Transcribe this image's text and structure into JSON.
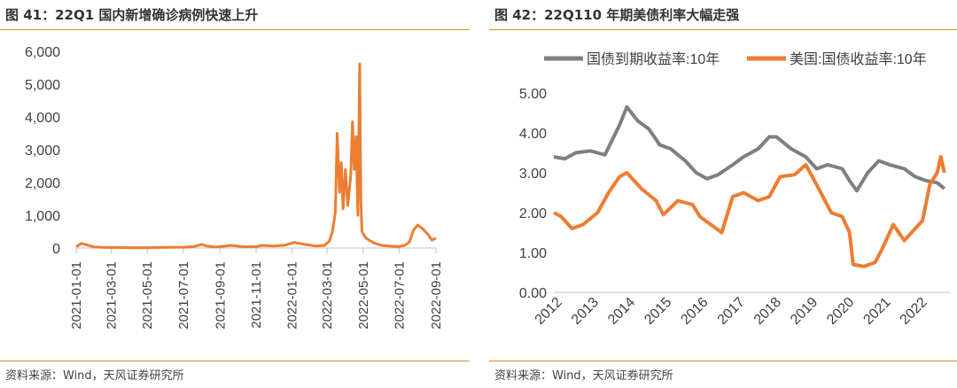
{
  "left": {
    "title": "图 41：22Q1 国内新增确诊病例快速上升",
    "source": "资料来源：Wind，天风证券研究所"
  },
  "right": {
    "title": "图 42：22Q110 年期美债利率大幅走强",
    "source": "资料来源：Wind，天风证券研究所"
  },
  "colors": {
    "accent": "#e6882e",
    "series_gray": "#7f7f7f",
    "series_orange": "#ed7d31"
  },
  "chart_data": [
    {
      "type": "line",
      "title": "",
      "xlabel": "",
      "ylabel": "",
      "ylim": [
        0,
        6000
      ],
      "yticks": [
        0,
        1000,
        2000,
        3000,
        4000,
        5000,
        6000
      ],
      "ytick_labels": [
        "0",
        "1,000",
        "2,000",
        "3,000",
        "4,000",
        "5,000",
        "6,000"
      ],
      "xticks": [
        "2021-01-01",
        "2021-03-01",
        "2021-05-01",
        "2021-07-01",
        "2021-09-01",
        "2021-11-01",
        "2022-01-01",
        "2022-03-01",
        "2022-05-01",
        "2022-07-01",
        "2022-09-01"
      ],
      "grid": false,
      "legend": "none",
      "series": [
        {
          "x": [
            "2021-01-01",
            "2021-01-10",
            "2021-01-20",
            "2021-02-01",
            "2021-02-20",
            "2021-03-10",
            "2021-04-01",
            "2021-05-01",
            "2021-06-01",
            "2021-06-20",
            "2021-07-01",
            "2021-07-20",
            "2021-08-01",
            "2021-08-10",
            "2021-08-25",
            "2021-09-10",
            "2021-09-20",
            "2021-10-10",
            "2021-11-01",
            "2021-11-10",
            "2021-12-01",
            "2021-12-20",
            "2022-01-05",
            "2022-01-20",
            "2022-02-10",
            "2022-02-25",
            "2022-03-05",
            "2022-03-10",
            "2022-03-15",
            "2022-03-18",
            "2022-03-22",
            "2022-03-25",
            "2022-03-28",
            "2022-04-01",
            "2022-04-05",
            "2022-04-10",
            "2022-04-13",
            "2022-04-16",
            "2022-04-19",
            "2022-04-22",
            "2022-04-25",
            "2022-04-27",
            "2022-04-29",
            "2022-05-02",
            "2022-05-06",
            "2022-05-10",
            "2022-05-20",
            "2022-06-01",
            "2022-06-15",
            "2022-07-01",
            "2022-07-10",
            "2022-07-18",
            "2022-07-25",
            "2022-08-01",
            "2022-08-10",
            "2022-08-20",
            "2022-08-25",
            "2022-09-01"
          ],
          "values": [
            40,
            140,
            90,
            30,
            15,
            15,
            10,
            10,
            20,
            25,
            25,
            50,
            110,
            60,
            30,
            60,
            80,
            40,
            40,
            80,
            60,
            90,
            170,
            120,
            60,
            80,
            220,
            500,
            1100,
            3500,
            1700,
            2600,
            1200,
            2400,
            1300,
            2200,
            3850,
            2400,
            3400,
            1000,
            5620,
            1500,
            500,
            400,
            300,
            250,
            150,
            80,
            60,
            50,
            80,
            180,
            550,
            700,
            580,
            380,
            240,
            300
          ]
        }
      ]
    },
    {
      "type": "line",
      "title": "",
      "xlabel": "",
      "ylabel": "",
      "ylim": [
        0,
        5
      ],
      "yticks": [
        0,
        1,
        2,
        3,
        4,
        5
      ],
      "ytick_labels": [
        "0.00",
        "1.00",
        "2.00",
        "3.00",
        "4.00",
        "5.00"
      ],
      "xticks": [
        "2012",
        "2013",
        "2014",
        "2015",
        "2016",
        "2017",
        "2018",
        "2019",
        "2020",
        "2021",
        "2022"
      ],
      "grid": false,
      "legend": "top",
      "series": [
        {
          "name": "国债到期收益率:10年",
          "x": [
            2012.0,
            2012.3,
            2012.6,
            2013.0,
            2013.4,
            2013.8,
            2014.0,
            2014.3,
            2014.6,
            2014.9,
            2015.2,
            2015.6,
            2015.9,
            2016.2,
            2016.5,
            2016.9,
            2017.2,
            2017.6,
            2017.9,
            2018.1,
            2018.5,
            2018.9,
            2019.2,
            2019.5,
            2019.9,
            2020.1,
            2020.3,
            2020.6,
            2020.9,
            2021.2,
            2021.6,
            2021.9,
            2022.2,
            2022.5,
            2022.7
          ],
          "values": [
            3.4,
            3.35,
            3.5,
            3.55,
            3.45,
            4.2,
            4.65,
            4.3,
            4.1,
            3.7,
            3.6,
            3.3,
            3.0,
            2.85,
            2.95,
            3.2,
            3.4,
            3.6,
            3.9,
            3.9,
            3.6,
            3.4,
            3.1,
            3.2,
            3.1,
            2.8,
            2.55,
            3.0,
            3.3,
            3.2,
            3.1,
            2.9,
            2.8,
            2.75,
            2.6
          ]
        },
        {
          "name": "美国:国债收益率:10年",
          "x": [
            2012.0,
            2012.2,
            2012.5,
            2012.8,
            2013.2,
            2013.5,
            2013.8,
            2014.0,
            2014.4,
            2014.8,
            2015.0,
            2015.4,
            2015.8,
            2016.0,
            2016.3,
            2016.6,
            2016.9,
            2017.2,
            2017.6,
            2017.9,
            2018.2,
            2018.6,
            2018.9,
            2019.2,
            2019.6,
            2019.9,
            2020.1,
            2020.2,
            2020.5,
            2020.8,
            2021.0,
            2021.3,
            2021.6,
            2021.9,
            2022.1,
            2022.3,
            2022.5,
            2022.6,
            2022.7
          ],
          "values": [
            2.0,
            1.9,
            1.6,
            1.7,
            2.0,
            2.5,
            2.9,
            3.0,
            2.6,
            2.3,
            1.95,
            2.3,
            2.2,
            1.9,
            1.7,
            1.5,
            2.4,
            2.5,
            2.3,
            2.4,
            2.9,
            2.95,
            3.2,
            2.7,
            2.0,
            1.9,
            1.5,
            0.7,
            0.65,
            0.75,
            1.1,
            1.7,
            1.3,
            1.6,
            1.8,
            2.7,
            3.0,
            3.4,
            3.0
          ]
        }
      ]
    }
  ]
}
